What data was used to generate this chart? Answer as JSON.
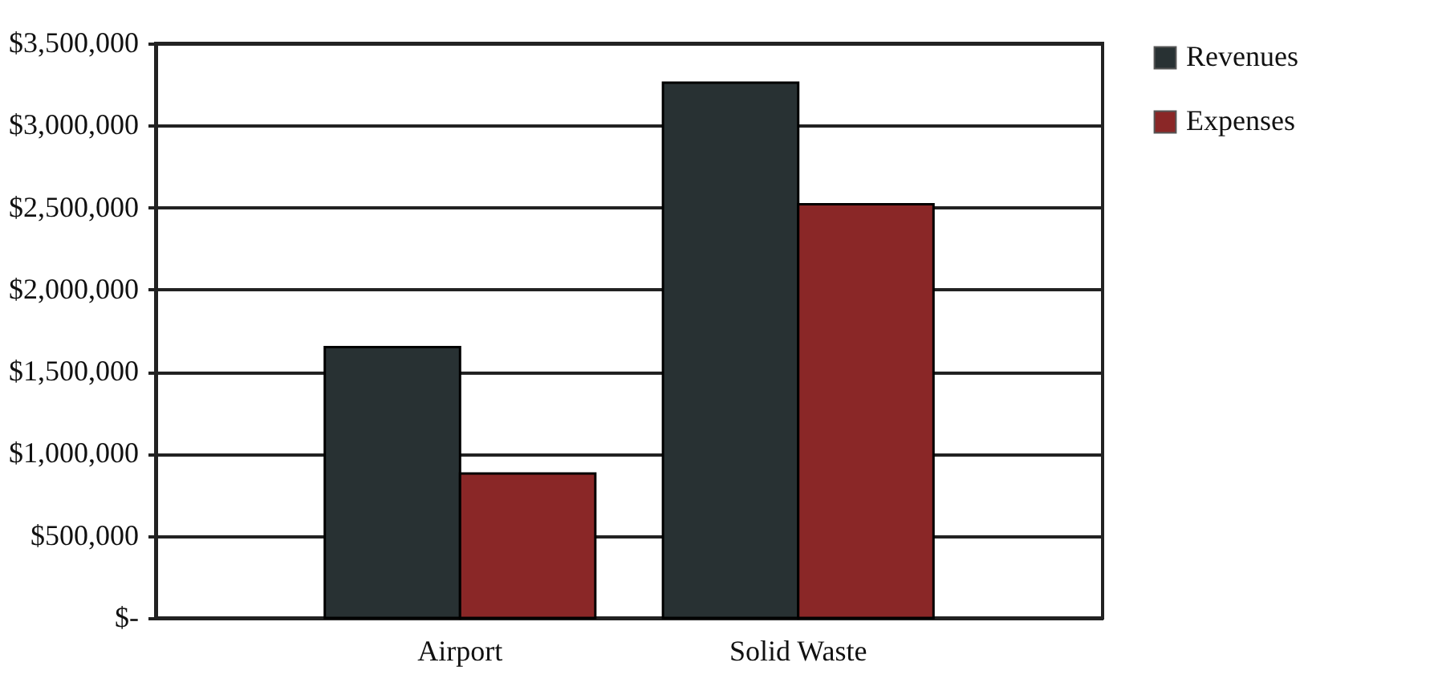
{
  "chart_data": {
    "type": "bar",
    "categories": [
      "Airport",
      "Solid Waste"
    ],
    "series": [
      {
        "name": "Revenues",
        "color": "#283133",
        "values": [
          1650000,
          3260000
        ]
      },
      {
        "name": "Expenses",
        "color": "#8a2727",
        "values": [
          880000,
          2520000
        ]
      }
    ],
    "ylim": [
      0,
      3500000
    ],
    "yticks": [
      {
        "value": 0,
        "label": "$-"
      },
      {
        "value": 500000,
        "label": "$500,000"
      },
      {
        "value": 1000000,
        "label": "$1,000,000"
      },
      {
        "value": 1500000,
        "label": "$1,500,000"
      },
      {
        "value": 2000000,
        "label": "$2,000,000"
      },
      {
        "value": 2500000,
        "label": "$2,500,000"
      },
      {
        "value": 3000000,
        "label": "$3,000,000"
      },
      {
        "value": 3500000,
        "label": "$3,500,000"
      }
    ],
    "grid": "y",
    "legend": "right"
  }
}
